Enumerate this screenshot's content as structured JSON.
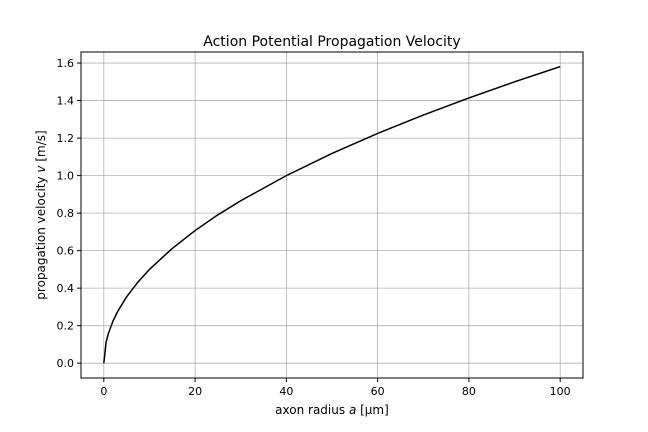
{
  "chart_data": {
    "type": "line",
    "title": "Action Potential Propagation Velocity",
    "xlabel_prefix": "axon radius ",
    "xlabel_var": "a",
    "xlabel_suffix": " [μm]",
    "ylabel_prefix": "propagation velocity ",
    "ylabel_var": "v",
    "ylabel_suffix": " [m/s]",
    "xlim": [
      -5,
      105
    ],
    "ylim": [
      -0.079,
      1.659
    ],
    "xticks": [
      0,
      20,
      40,
      60,
      80,
      100
    ],
    "xtick_labels": [
      "0",
      "20",
      "40",
      "60",
      "80",
      "100"
    ],
    "yticks": [
      0.0,
      0.2,
      0.4,
      0.6,
      0.8,
      1.0,
      1.2,
      1.4,
      1.6
    ],
    "ytick_labels": [
      "0.0",
      "0.2",
      "0.4",
      "0.6",
      "0.8",
      "1.0",
      "1.2",
      "1.4",
      "1.6"
    ],
    "grid": true,
    "line_color": "#000000",
    "grid_color": "#b0b0b0",
    "series": [
      {
        "x": [
          0,
          0.5,
          1,
          2,
          3,
          5,
          7.5,
          10,
          15,
          20,
          25,
          30,
          40,
          50,
          60,
          70,
          80,
          90,
          100
        ],
        "values": [
          0,
          0.112,
          0.158,
          0.224,
          0.274,
          0.354,
          0.433,
          0.5,
          0.612,
          0.707,
          0.791,
          0.866,
          1.0,
          1.118,
          1.225,
          1.323,
          1.414,
          1.5,
          1.581
        ]
      }
    ]
  }
}
